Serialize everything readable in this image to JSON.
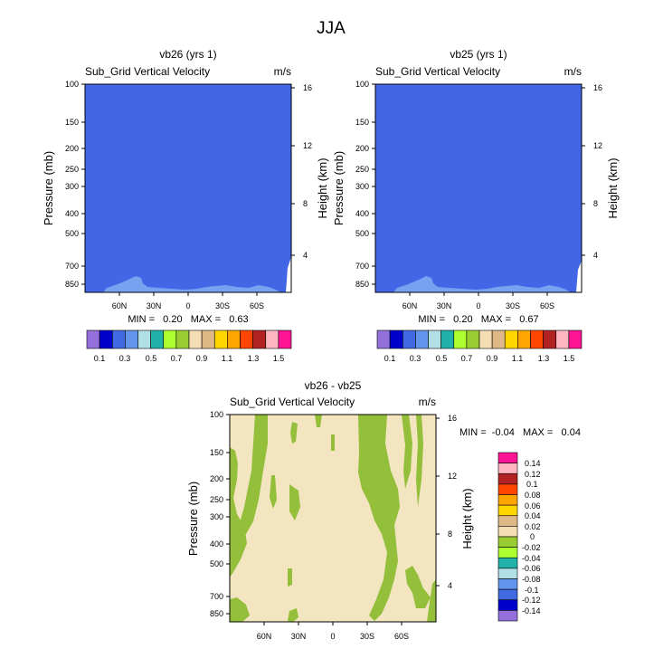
{
  "figure": {
    "title": "JJA"
  },
  "colors": {
    "background": "#ffffff",
    "panel_fill": "#4166e6",
    "light_blue": "#76a3f0",
    "diff_fill": "#f2e5c0",
    "green": "#93bf3a"
  },
  "chart_data": [
    {
      "type": "heatmap",
      "id": "vb26",
      "title": "vb26 (yrs 1)",
      "subtitle": "Sub_Grid Vertical Velocity",
      "units": "m/s",
      "ylabel": "Pressure (mb)",
      "ylabel_right": "Height (km)",
      "x_ticks": [
        "60N",
        "30N",
        "0",
        "30S",
        "60S"
      ],
      "y_ticks": [
        "100",
        "150",
        "200",
        "250",
        "300",
        "400",
        "500",
        "700",
        "850"
      ],
      "y_ticks_right": [
        "16",
        "12",
        "8",
        "4"
      ],
      "stats": "MIN =   0.20   MAX =   0.63",
      "x_range": [
        "90N",
        "90S"
      ],
      "y_range": [
        100,
        925
      ],
      "dominant_level": 0.3
    },
    {
      "type": "heatmap",
      "id": "vb25",
      "title": "vb25 (yrs 1)",
      "subtitle": "Sub_Grid Vertical Velocity",
      "units": "m/s",
      "ylabel": "Pressure (mb)",
      "ylabel_right": "Height (km)",
      "x_ticks": [
        "60N",
        "30N",
        "0",
        "30S",
        "60S"
      ],
      "y_ticks": [
        "100",
        "150",
        "200",
        "250",
        "300",
        "400",
        "500",
        "700",
        "850"
      ],
      "y_ticks_right": [
        "16",
        "12",
        "8",
        "4"
      ],
      "stats": "MIN =   0.20   MAX =   0.67",
      "x_range": [
        "90N",
        "90S"
      ],
      "y_range": [
        100,
        925
      ],
      "dominant_level": 0.3
    },
    {
      "type": "heatmap",
      "id": "diff",
      "title": "vb26 - vb25",
      "subtitle": "Sub_Grid Vertical Velocity",
      "units": "m/s",
      "ylabel": "Pressure (mb)",
      "ylabel_right": "Height (km)",
      "x_ticks": [
        "60N",
        "30N",
        "0",
        "30S",
        "60S"
      ],
      "y_ticks": [
        "100",
        "150",
        "200",
        "250",
        "300",
        "400",
        "500",
        "700",
        "850"
      ],
      "y_ticks_right": [
        "16",
        "12",
        "8",
        "4"
      ],
      "stats": "MIN =  -0.04   MAX =   0.04",
      "x_range": [
        "90N",
        "90S"
      ],
      "y_range": [
        100,
        925
      ],
      "dominant_level": 0.0
    }
  ],
  "colorbar_top": {
    "colors": [
      "#9370db",
      "#0000cd",
      "#4169e1",
      "#6495ed",
      "#b0e0e6",
      "#20b2aa",
      "#adff2f",
      "#9acd32",
      "#f5deb3",
      "#deb887",
      "#ffd700",
      "#ffa500",
      "#ff4500",
      "#b22222",
      "#ffb6c1",
      "#ff1493"
    ],
    "labels": [
      "0.1",
      "0.3",
      "0.5",
      "0.7",
      "0.9",
      "1.1",
      "1.3",
      "1.5"
    ]
  },
  "colorbar_diff": {
    "colors": [
      "#ff1493",
      "#ffb6c1",
      "#b22222",
      "#ff4500",
      "#ffa500",
      "#ffd700",
      "#deb887",
      "#f5deb3",
      "#9acd32",
      "#adff2f",
      "#20b2aa",
      "#b0e0e6",
      "#6495ed",
      "#4169e1",
      "#0000cd",
      "#9370db"
    ],
    "labels": [
      "0.14",
      "0.12",
      "0.1",
      "0.08",
      "0.06",
      "0.04",
      "0.02",
      "0",
      "-0.02",
      "-0.04",
      "-0.06",
      "-0.08",
      "-0.1",
      "-0.12",
      "-0.14"
    ]
  }
}
